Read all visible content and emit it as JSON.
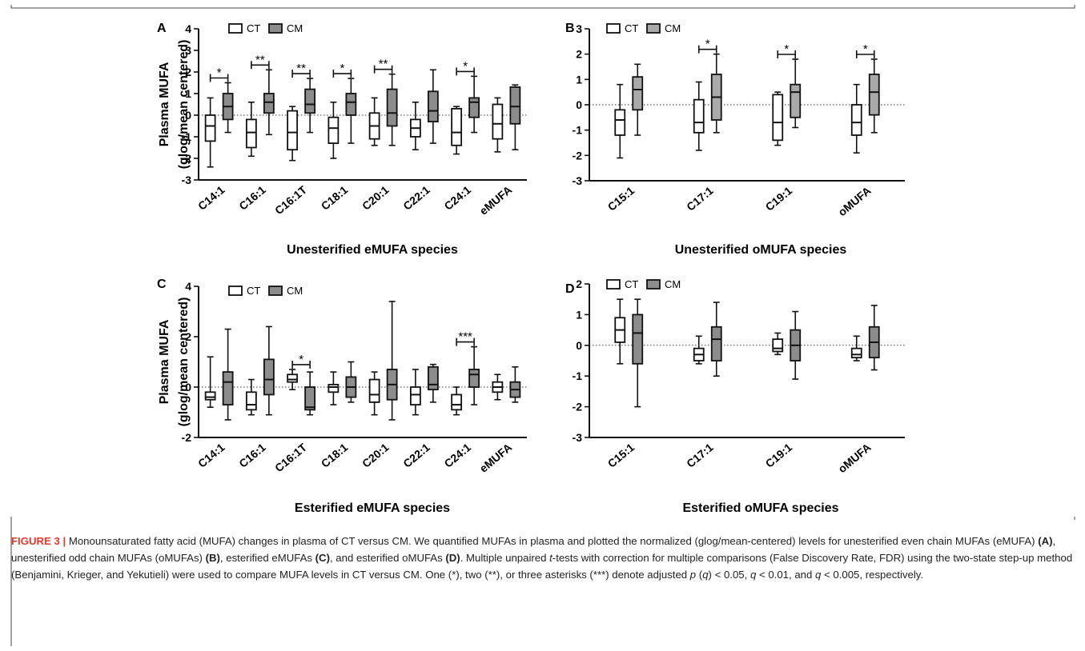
{
  "figure": {
    "legend_ct": "CT",
    "legend_cm": "CM",
    "caption": {
      "label": "FIGURE 3 |",
      "p1": " Monounsaturated fatty acid (MUFA) changes in plasma of CT versus CM. We quantified MUFAs in plasma and plotted the normalized (glog/mean-centered) levels for unesterified even chain MUFAs (eMUFA) ",
      "ra": "(A)",
      "p2": ", unesterified odd chain MUFAs (oMUFAs) ",
      "rb": "(B)",
      "p3": ", esterified eMUFAs ",
      "rc": "(C)",
      "p4": ", and esterified oMUFAs ",
      "rd": "(D)",
      "p5": ". Multiple unpaired ",
      "t": "t",
      "p6": "-tests with correction for multiple comparisons (False Discovery Rate, FDR) using the two-state step-up method (Benjamini, Krieger, and Yekutieli) were used to compare MUFA levels in CT versus CM. One (*), two (**), or three asterisks (***) denote adjusted ",
      "p": "p",
      "p7": " (",
      "q1": "q",
      "p8": ") < 0.05, ",
      "q2": "q",
      "p9": " < 0.01, and ",
      "q3": "q",
      "p10": " < 0.005, respectively."
    },
    "colors": {
      "ct_fill": "#ffffff",
      "cm_fill": "#a9a9a9",
      "cm_fill_dark": "#8c8c8c",
      "stroke": "#111111"
    }
  },
  "chart_data": [
    {
      "panel": "A",
      "type": "box",
      "ylabel": [
        "Plasma MUFA",
        "(glog/mean centered)"
      ],
      "xlabel": "Unesterified eMUFA species",
      "ylim": [
        -3,
        4
      ],
      "yticks": [
        4,
        3,
        2,
        1,
        0,
        -1,
        -2,
        -3
      ],
      "categories": [
        "C14:1",
        "C16:1",
        "C16:1T",
        "C18:1",
        "C20:1",
        "C22:1",
        "C24:1",
        "eMUFA"
      ],
      "series": [
        {
          "name": "CT",
          "boxes": [
            {
              "min": -2.4,
              "q1": -1.2,
              "median": -0.5,
              "q3": 0.0,
              "max": 0.8
            },
            {
              "min": -1.9,
              "q1": -1.5,
              "median": -0.8,
              "q3": -0.2,
              "max": 0.6
            },
            {
              "min": -2.1,
              "q1": -1.6,
              "median": -0.8,
              "q3": 0.2,
              "max": 0.4
            },
            {
              "min": -2.0,
              "q1": -1.3,
              "median": -0.6,
              "q3": -0.1,
              "max": 0.6
            },
            {
              "min": -1.4,
              "q1": -1.1,
              "median": -0.5,
              "q3": 0.1,
              "max": 0.8
            },
            {
              "min": -1.6,
              "q1": -1.0,
              "median": -0.6,
              "q3": -0.2,
              "max": 0.6
            },
            {
              "min": -1.8,
              "q1": -1.4,
              "median": -0.8,
              "q3": 0.3,
              "max": 0.4
            },
            {
              "min": -1.7,
              "q1": -1.1,
              "median": -0.4,
              "q3": 0.5,
              "max": 0.8
            }
          ]
        },
        {
          "name": "CM",
          "boxes": [
            {
              "min": -0.8,
              "q1": -0.2,
              "median": 0.4,
              "q3": 1.0,
              "max": 1.5
            },
            {
              "min": -0.9,
              "q1": 0.1,
              "median": 0.6,
              "q3": 1.0,
              "max": 2.1
            },
            {
              "min": -0.8,
              "q1": 0.1,
              "median": 0.5,
              "q3": 1.2,
              "max": 1.7
            },
            {
              "min": -1.3,
              "q1": 0.0,
              "median": 0.6,
              "q3": 1.0,
              "max": 1.7
            },
            {
              "min": -1.4,
              "q1": -0.5,
              "median": 0.1,
              "q3": 1.2,
              "max": 1.9
            },
            {
              "min": -1.3,
              "q1": -0.3,
              "median": 0.2,
              "q3": 1.1,
              "max": 2.1
            },
            {
              "min": -0.8,
              "q1": -0.1,
              "median": 0.6,
              "q3": 0.8,
              "max": 1.8
            },
            {
              "min": -1.6,
              "q1": -0.4,
              "median": 0.4,
              "q3": 1.3,
              "max": 1.4
            }
          ]
        }
      ],
      "significance": [
        {
          "category": "C14:1",
          "label": "*"
        },
        {
          "category": "C16:1",
          "label": "**"
        },
        {
          "category": "C16:1T",
          "label": "**"
        },
        {
          "category": "C18:1",
          "label": "*"
        },
        {
          "category": "C20:1",
          "label": "**"
        },
        {
          "category": "C24:1",
          "label": "*"
        }
      ]
    },
    {
      "panel": "B",
      "type": "box",
      "ylabel": [],
      "xlabel": "Unesterified oMUFA species",
      "ylim": [
        -3,
        3
      ],
      "yticks": [
        3,
        2,
        1,
        0,
        -1,
        -2,
        -3
      ],
      "categories": [
        "C15:1",
        "C17:1",
        "C19:1",
        "oMUFA"
      ],
      "series": [
        {
          "name": "CT",
          "boxes": [
            {
              "min": -2.1,
              "q1": -1.2,
              "median": -0.6,
              "q3": -0.2,
              "max": 0.8
            },
            {
              "min": -1.8,
              "q1": -1.1,
              "median": -0.7,
              "q3": 0.2,
              "max": 0.9
            },
            {
              "min": -1.6,
              "q1": -1.4,
              "median": -0.7,
              "q3": 0.4,
              "max": 0.5
            },
            {
              "min": -1.9,
              "q1": -1.2,
              "median": -0.7,
              "q3": 0.0,
              "max": 0.8
            }
          ]
        },
        {
          "name": "CM",
          "boxes": [
            {
              "min": -1.2,
              "q1": -0.2,
              "median": 0.6,
              "q3": 1.1,
              "max": 1.6
            },
            {
              "min": -1.1,
              "q1": -0.6,
              "median": 0.3,
              "q3": 1.2,
              "max": 2.0
            },
            {
              "min": -0.9,
              "q1": -0.5,
              "median": 0.5,
              "q3": 0.8,
              "max": 1.8
            },
            {
              "min": -1.1,
              "q1": -0.4,
              "median": 0.5,
              "q3": 1.2,
              "max": 1.8
            }
          ]
        }
      ],
      "significance": [
        {
          "category": "C17:1",
          "label": "*"
        },
        {
          "category": "C19:1",
          "label": "*"
        },
        {
          "category": "oMUFA",
          "label": "*"
        }
      ]
    },
    {
      "panel": "C",
      "type": "box",
      "ylabel": [
        "Plasma MUFA",
        "(glog/mean centered)"
      ],
      "xlabel": "Esterified eMUFA species",
      "ylim": [
        -2,
        4
      ],
      "yticks": [
        4,
        2,
        0,
        -2
      ],
      "categories": [
        "C14:1",
        "C16:1",
        "C16:1T",
        "C18:1",
        "C20:1",
        "C22:1",
        "C24:1",
        "eMUFA"
      ],
      "series": [
        {
          "name": "CT",
          "boxes": [
            {
              "min": -0.8,
              "q1": -0.5,
              "median": -0.4,
              "q3": -0.2,
              "max": 1.2
            },
            {
              "min": -1.1,
              "q1": -0.9,
              "median": -0.7,
              "q3": -0.2,
              "max": 0.3
            },
            {
              "min": -0.1,
              "q1": 0.2,
              "median": 0.3,
              "q3": 0.5,
              "max": 0.7
            },
            {
              "min": -0.7,
              "q1": -0.2,
              "median": 0.0,
              "q3": 0.1,
              "max": 0.6
            },
            {
              "min": -1.1,
              "q1": -0.6,
              "median": -0.3,
              "q3": 0.3,
              "max": 0.6
            },
            {
              "min": -1.1,
              "q1": -0.7,
              "median": -0.3,
              "q3": 0.0,
              "max": 0.7
            },
            {
              "min": -1.1,
              "q1": -0.9,
              "median": -0.7,
              "q3": -0.3,
              "max": 0.0
            },
            {
              "min": -0.5,
              "q1": -0.2,
              "median": 0.0,
              "q3": 0.2,
              "max": 0.5
            }
          ]
        },
        {
          "name": "CM",
          "boxes": [
            {
              "min": -1.3,
              "q1": -0.7,
              "median": 0.2,
              "q3": 0.6,
              "max": 2.3
            },
            {
              "min": -1.1,
              "q1": -0.3,
              "median": 0.3,
              "q3": 1.1,
              "max": 2.4
            },
            {
              "min": -1.1,
              "q1": -0.9,
              "median": -0.8,
              "q3": 0.0,
              "max": 0.6
            },
            {
              "min": -0.6,
              "q1": -0.4,
              "median": 0.0,
              "q3": 0.4,
              "max": 1.0
            },
            {
              "min": -1.3,
              "q1": -0.5,
              "median": 0.1,
              "q3": 0.7,
              "max": 3.4
            },
            {
              "min": -0.6,
              "q1": -0.1,
              "median": 0.1,
              "q3": 0.8,
              "max": 0.9
            },
            {
              "min": -0.7,
              "q1": 0.0,
              "median": 0.5,
              "q3": 0.7,
              "max": 1.6
            },
            {
              "min": -0.6,
              "q1": -0.4,
              "median": -0.1,
              "q3": 0.2,
              "max": 0.8
            }
          ]
        }
      ],
      "significance": [
        {
          "category": "C16:1T",
          "label": "*"
        },
        {
          "category": "C24:1",
          "label": "***"
        }
      ]
    },
    {
      "panel": "D",
      "type": "box",
      "ylabel": [],
      "xlabel": "Esterified oMUFA species",
      "ylim": [
        -3,
        2
      ],
      "yticks": [
        2,
        1,
        0,
        -1,
        -2,
        -3
      ],
      "categories": [
        "C15:1",
        "C17:1",
        "C19:1",
        "oMUFA"
      ],
      "series": [
        {
          "name": "CT",
          "boxes": [
            {
              "min": -0.6,
              "q1": 0.1,
              "median": 0.5,
              "q3": 0.9,
              "max": 1.5
            },
            {
              "min": -0.6,
              "q1": -0.5,
              "median": -0.3,
              "q3": -0.1,
              "max": 0.3
            },
            {
              "min": -0.3,
              "q1": -0.2,
              "median": -0.1,
              "q3": 0.2,
              "max": 0.4
            },
            {
              "min": -0.5,
              "q1": -0.4,
              "median": -0.3,
              "q3": -0.1,
              "max": 0.3
            }
          ]
        },
        {
          "name": "CM",
          "boxes": [
            {
              "min": -2.0,
              "q1": -0.6,
              "median": 0.4,
              "q3": 1.0,
              "max": 1.5
            },
            {
              "min": -1.0,
              "q1": -0.5,
              "median": 0.2,
              "q3": 0.6,
              "max": 1.4
            },
            {
              "min": -1.1,
              "q1": -0.5,
              "median": 0.0,
              "q3": 0.5,
              "max": 1.1
            },
            {
              "min": -0.8,
              "q1": -0.4,
              "median": 0.1,
              "q3": 0.6,
              "max": 1.3
            }
          ]
        }
      ],
      "significance": []
    }
  ]
}
